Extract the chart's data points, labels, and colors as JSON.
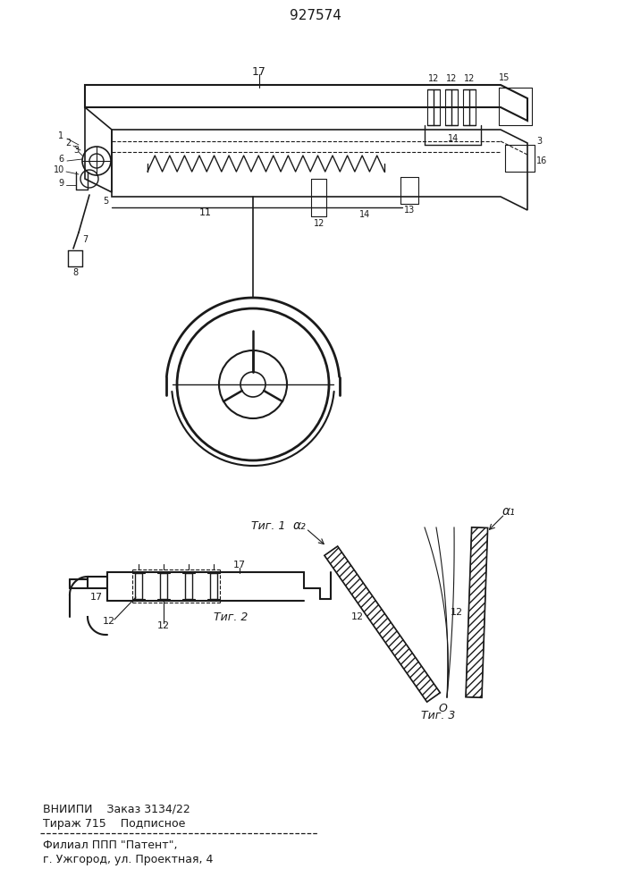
{
  "patent_number": "927574",
  "fig1_caption": "Τиг. 1",
  "fig2_caption": "Τиг. 2",
  "fig3_caption": "Τиг. 3",
  "footer_line1": "ВНИИПИ    Заказ 3134/22",
  "footer_line2": "Тираж 715    Подписное",
  "footer_line3": "Филиал ППП \"Патент\",",
  "footer_line4": "г. Ужгород, ул. Проектная, 4",
  "bg_color": "#ffffff",
  "line_color": "#1a1a1a"
}
